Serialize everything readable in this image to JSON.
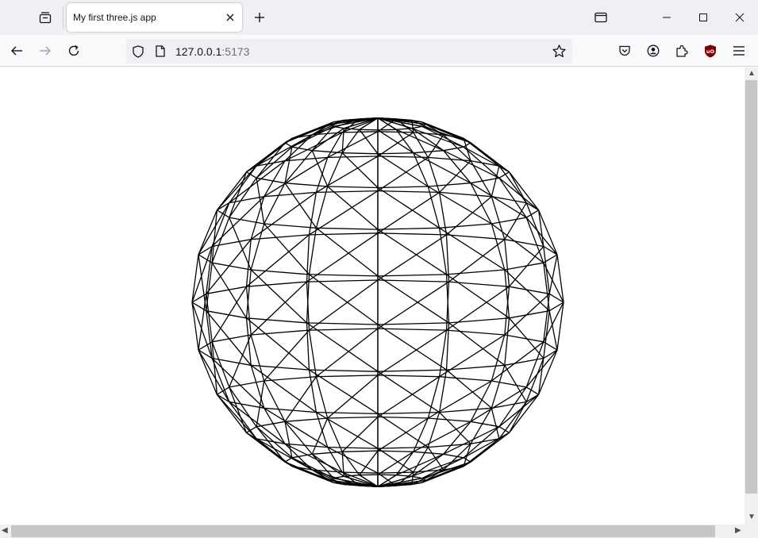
{
  "browser": {
    "tab": {
      "title": "My first three.js app"
    },
    "url": {
      "host": "127.0.0.1",
      "port": ":5173"
    },
    "icons": {
      "tab_list": "tab-list-icon",
      "close_tab": "close-icon",
      "new_tab": "plus-icon",
      "back": "back-arrow-icon",
      "forward": "forward-arrow-icon",
      "reload": "reload-icon",
      "tracking": "shield-icon",
      "page": "page-icon",
      "bookmark": "star-icon",
      "pocket": "pocket-icon",
      "account": "account-icon",
      "extensions": "puzzle-icon",
      "ublock": "ublock-shield-icon",
      "menu": "hamburger-menu-icon"
    },
    "colors": {
      "ublock": "#800000",
      "tabbar": "#f0f0f4",
      "navbar": "#f9f9fb"
    }
  },
  "scene": {
    "object": "wireframe sphere",
    "line_color": "#000000",
    "background": "#ffffff"
  }
}
